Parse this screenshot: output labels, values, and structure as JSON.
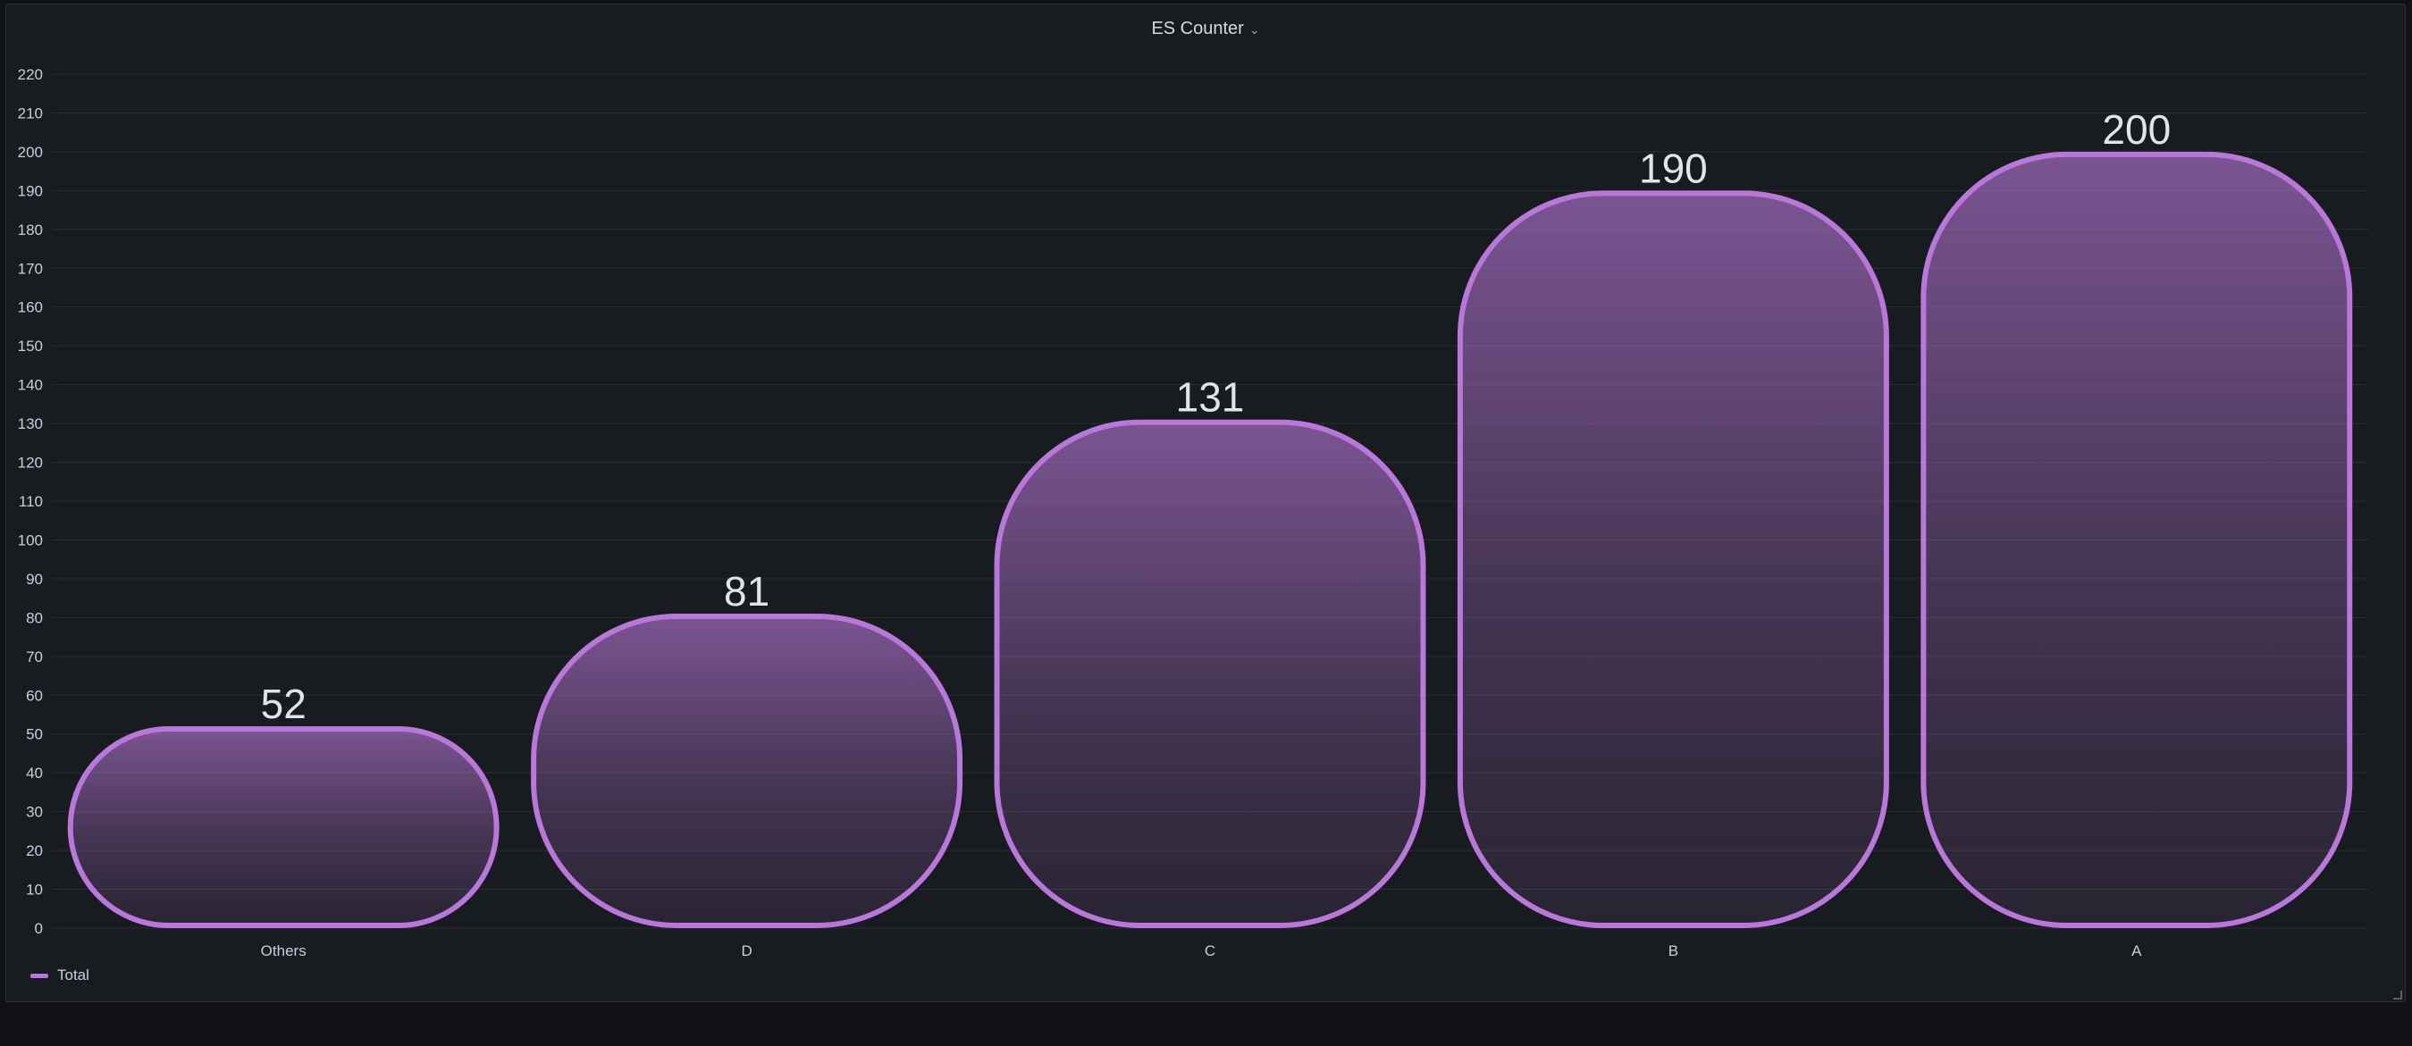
{
  "panel": {
    "title": "ES Counter"
  },
  "colors": {
    "series": "#b877d9",
    "grid": "#2b2e33",
    "text": "#ccccdc",
    "value_text": "#e2e4e8"
  },
  "legend": {
    "label": "Total"
  },
  "chart_data": {
    "type": "bar",
    "categories": [
      "Others",
      "D",
      "C",
      "B",
      "A"
    ],
    "series": [
      {
        "name": "Total",
        "values": [
          52,
          81,
          131,
          190,
          200
        ]
      }
    ],
    "ylim": [
      0,
      220
    ],
    "yticks": [
      0,
      10,
      20,
      30,
      40,
      50,
      60,
      70,
      80,
      90,
      100,
      110,
      120,
      130,
      140,
      150,
      160,
      170,
      180,
      190,
      200,
      210,
      220
    ],
    "grid": true,
    "legend_position": "bottom-left",
    "show_values": true
  }
}
